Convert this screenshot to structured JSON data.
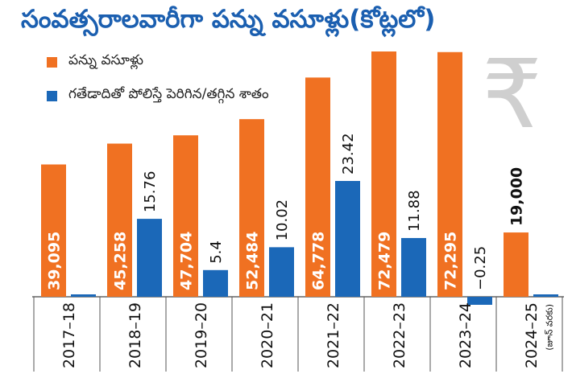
{
  "title": "సంవత్సరాలవారీగా పన్ను వసూళ్లు(కోట్లలో)",
  "colors": {
    "collections": "#f07122",
    "change": "#1b68b8",
    "title": "#1b5fb0"
  },
  "icon": "rupee-icon",
  "rupee_glyph": "₹",
  "chart_data": {
    "type": "bar",
    "title": "సంవత్సరాలవారీగా పన్ను వసూళ్లు(కోట్లలో)",
    "legend_position": "top-left",
    "grid": false,
    "categories": [
      "2017–18",
      "2018–19",
      "2019–20",
      "2020–21",
      "2021–22",
      "2022–23",
      "2023–24",
      "2024–25"
    ],
    "category_note": "(జూన్ వరకు)",
    "category_note_index": 7,
    "series": [
      {
        "name": "పన్ను వసూళ్లు",
        "values": [
          39095,
          45258,
          47704,
          52484,
          64778,
          72479,
          72295,
          19000
        ],
        "labels": [
          "39,095",
          "45,258",
          "47,704",
          "52,484",
          "64,778",
          "72,479",
          "72,295",
          "19,000"
        ]
      },
      {
        "name": "గతేడాదితో పోలిస్తే పెరిగిన/తగ్గిన శాతం",
        "values": [
          null,
          15.76,
          5.4,
          10.02,
          23.42,
          11.88,
          -0.25,
          null
        ],
        "labels": [
          "",
          "15.76",
          "5.4",
          "10.02",
          "23.42",
          "11.88",
          "−0.25",
          ""
        ]
      }
    ]
  }
}
